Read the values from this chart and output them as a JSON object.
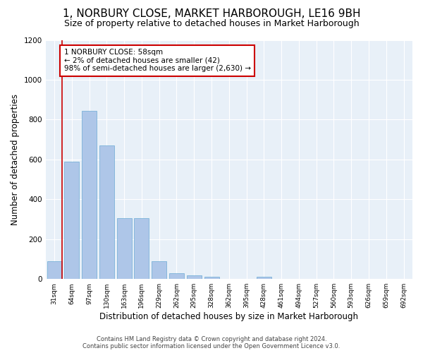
{
  "title": "1, NORBURY CLOSE, MARKET HARBOROUGH, LE16 9BH",
  "subtitle": "Size of property relative to detached houses in Market Harborough",
  "xlabel": "Distribution of detached houses by size in Market Harborough",
  "ylabel": "Number of detached properties",
  "bar_values": [
    90,
    590,
    845,
    670,
    305,
    305,
    90,
    30,
    20,
    10,
    0,
    0,
    10,
    0,
    0,
    0,
    0,
    0,
    0,
    0,
    0
  ],
  "bin_labels": [
    "31sqm",
    "64sqm",
    "97sqm",
    "130sqm",
    "163sqm",
    "196sqm",
    "229sqm",
    "262sqm",
    "295sqm",
    "328sqm",
    "362sqm",
    "395sqm",
    "428sqm",
    "461sqm",
    "494sqm",
    "527sqm",
    "560sqm",
    "593sqm",
    "626sqm",
    "659sqm",
    "692sqm"
  ],
  "bar_color": "#aec6e8",
  "bar_edge_color": "#6aaad4",
  "annotation_box_text": "1 NORBURY CLOSE: 58sqm\n← 2% of detached houses are smaller (42)\n98% of semi-detached houses are larger (2,630) →",
  "annotation_box_color": "#ffffff",
  "annotation_box_edge_color": "#cc0000",
  "vertical_line_color": "#cc0000",
  "ylim": [
    0,
    1200
  ],
  "yticks": [
    0,
    200,
    400,
    600,
    800,
    1000,
    1200
  ],
  "background_color": "#e8f0f8",
  "footer_line1": "Contains HM Land Registry data © Crown copyright and database right 2024.",
  "footer_line2": "Contains public sector information licensed under the Open Government Licence v3.0.",
  "title_fontsize": 11,
  "subtitle_fontsize": 9,
  "xlabel_fontsize": 8.5,
  "ylabel_fontsize": 8.5,
  "annotation_fontsize": 7.5,
  "footer_fontsize": 6.0
}
